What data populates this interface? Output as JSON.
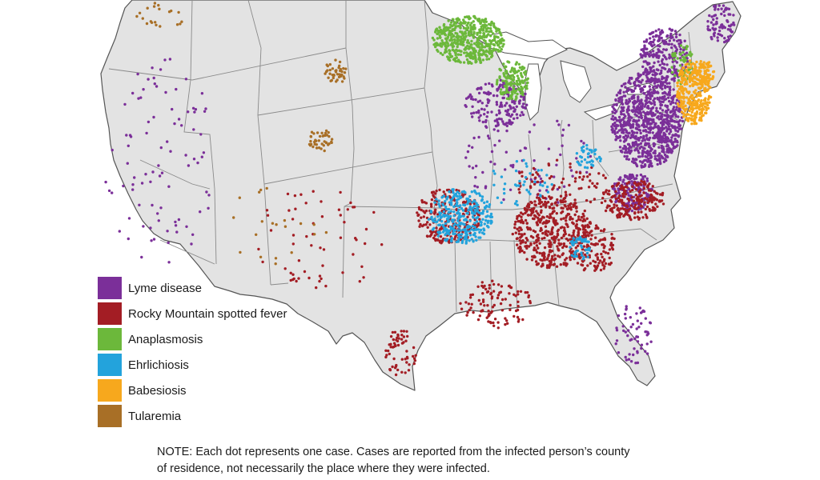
{
  "legend": {
    "items": [
      {
        "label": "Lyme disease",
        "color": "#7b2f99"
      },
      {
        "label": "Rocky Mountain spotted fever",
        "color": "#a31d24"
      },
      {
        "label": "Anaplasmosis",
        "color": "#6cb83b"
      },
      {
        "label": "Ehrlichiosis",
        "color": "#23a3dc"
      },
      {
        "label": "Babesiosis",
        "color": "#f7a81d"
      },
      {
        "label": "Tularemia",
        "color": "#a86f26"
      }
    ]
  },
  "note": {
    "line1": "NOTE: Each dot represents one case. Cases are reported from the infected person’s county",
    "line2": "of residence, not necessarily the place where they were infected."
  }
}
